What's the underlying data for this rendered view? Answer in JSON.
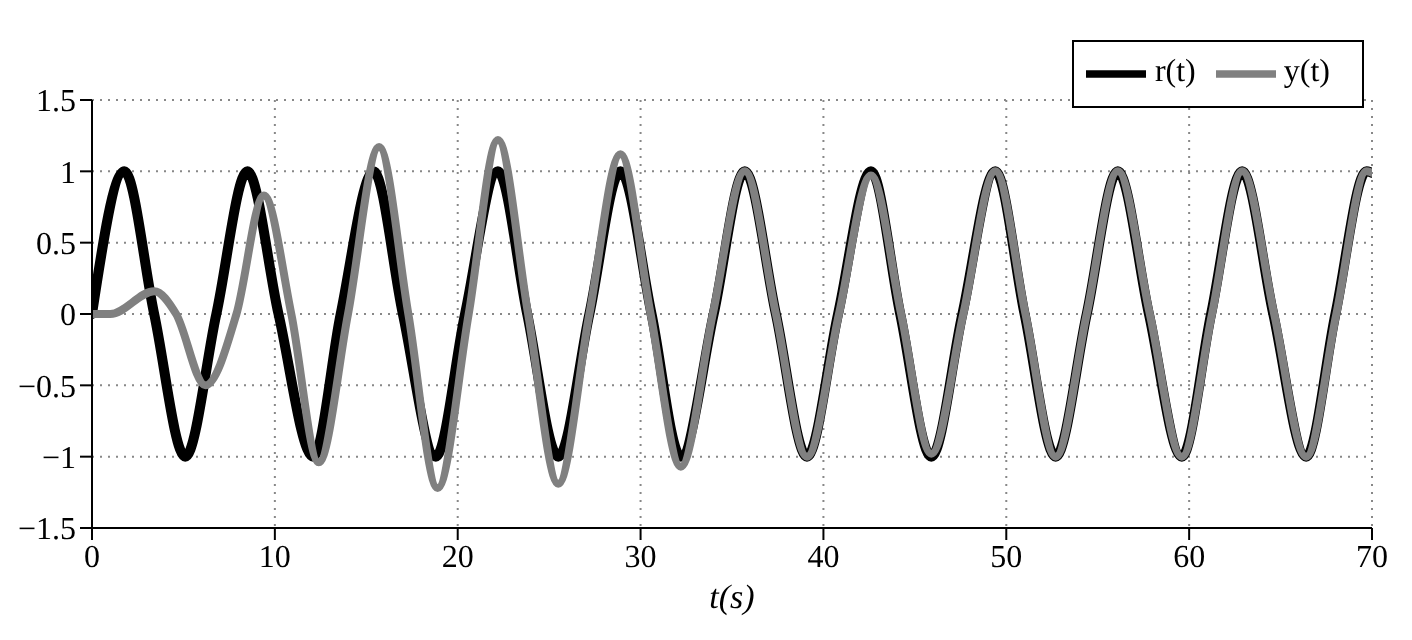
{
  "chart_data": {
    "type": "line",
    "xlabel": "t(s)",
    "xlim": [
      0,
      70
    ],
    "xticks": [
      0,
      10,
      20,
      30,
      40,
      50,
      60,
      70
    ],
    "ylim": [
      -1.5,
      1.5
    ],
    "yticks": [
      -1.5,
      -1,
      -0.5,
      0,
      0.5,
      1,
      1.5
    ],
    "grid": true,
    "legend": "top right",
    "marker": "none",
    "line_style": "solid",
    "series": [
      {
        "name": "r(t)",
        "color": "#000000",
        "x": [
          0,
          1.77,
          3.4,
          5.1,
          6.8,
          8.5,
          10.2,
          12.1,
          13.6,
          15.4,
          17.0,
          18.8,
          20.4,
          22.2,
          23.8,
          25.5,
          27.2,
          28.9,
          30.6,
          32.2,
          34.0,
          35.7,
          37.4,
          39.1,
          40.8,
          42.6,
          44.2,
          45.9,
          47.6,
          49.4,
          51.0,
          52.7,
          54.4,
          56.1,
          57.8,
          59.6,
          61.2,
          62.9,
          64.6,
          66.4,
          68.0,
          69.7,
          70
        ],
        "values": [
          0,
          1,
          0,
          -1,
          0,
          1,
          0,
          -1,
          0,
          1,
          0,
          -1,
          0,
          1,
          0,
          -1,
          0,
          1,
          0,
          -1,
          0,
          1,
          0,
          -1,
          0,
          1,
          0,
          -1,
          0,
          1,
          0,
          -1,
          0,
          1,
          0,
          -1,
          0,
          1,
          0,
          -1,
          0,
          1,
          0.99
        ]
      },
      {
        "name": "y(t)",
        "color": "#808080",
        "x": [
          0,
          1.0,
          3.4,
          4.6,
          6.2,
          7.9,
          9.4,
          10.9,
          12.4,
          14.0,
          15.7,
          17.3,
          18.9,
          20.6,
          22.2,
          23.85,
          25.5,
          27.2,
          28.9,
          30.55,
          32.2,
          33.95,
          35.7,
          37.4,
          39.1,
          40.85,
          42.6,
          44.25,
          45.9,
          47.65,
          49.4,
          51.05,
          52.7,
          54.4,
          56.1,
          57.85,
          59.6,
          61.25,
          62.9,
          64.65,
          66.4,
          68.05,
          69.7,
          70
        ],
        "values": [
          0,
          0,
          0.16,
          0,
          -0.5,
          0,
          0.83,
          0,
          -1.04,
          0,
          1.17,
          0,
          -1.22,
          0,
          1.22,
          0,
          -1.19,
          0,
          1.12,
          0,
          -1.07,
          0,
          1.0,
          0,
          -1.0,
          0,
          0.97,
          0,
          -0.98,
          0,
          1.0,
          0,
          -1.0,
          0,
          1.0,
          0,
          -1.0,
          0,
          1.0,
          0,
          -1.0,
          0,
          1.0,
          0.99
        ]
      }
    ]
  }
}
